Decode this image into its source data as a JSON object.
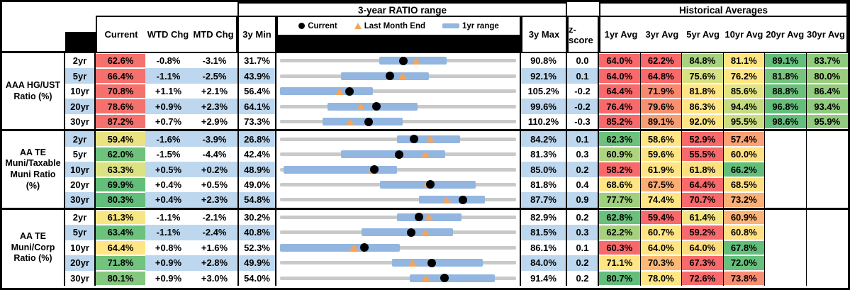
{
  "chart_data": {
    "type": "table",
    "sections": {
      "range_title": "3-year RATIO range",
      "averages_title": "Historical Averages"
    },
    "legend": {
      "current": "Current",
      "last_month": "Last Month End",
      "range_1yr": "1yr range"
    },
    "columns": {
      "current": "Current",
      "wtd": "WTD Chg",
      "mtd": "MTD Chg",
      "min": "3y Min",
      "max": "3y Max",
      "zscore": "z-score",
      "avg_headers": [
        "1yr Avg",
        "3yr Avg",
        "5yr Avg",
        "10yr Avg",
        "20yr Avg",
        "30yr Avg"
      ]
    },
    "colors": {
      "stripe_row": "#BDD7EE",
      "range_bar": "#92B6E0",
      "range_track": "#C9C9C9",
      "current_dot": "#000000",
      "last_month_triangle": "#F4A45C",
      "scale_red": "#F8696B",
      "scale_yellow": "#FFE584",
      "scale_green": "#63BE7B"
    },
    "groups": [
      {
        "label": "AAA HG/UST Ratio (%)",
        "rows": [
          {
            "tenor": "2yr",
            "stripe": false,
            "current": {
              "text": "62.6%",
              "bg": "#F5716D"
            },
            "wtd": "-0.8%",
            "mtd": "-3.1%",
            "min": "31.7%",
            "max": "90.8%",
            "z": "0.0",
            "range_plot": {
              "min": 31.7,
              "max": 90.8,
              "bar_lo": 56.5,
              "bar_hi": 73.5,
              "current": 62.6,
              "last_month": 65.7
            },
            "avgs": [
              {
                "text": "64.0%",
                "bg": "#F8696B"
              },
              {
                "text": "62.2%",
                "bg": "#F8696B"
              },
              {
                "text": "84.8%",
                "bg": "#A8D27F"
              },
              {
                "text": "81.1%",
                "bg": "#FFE584"
              },
              {
                "text": "89.1%",
                "bg": "#63BE7B"
              },
              {
                "text": "83.7%",
                "bg": "#90CB7D"
              }
            ]
          },
          {
            "tenor": "5yr",
            "stripe": true,
            "current": {
              "text": "66.4%",
              "bg": "#F5716D"
            },
            "wtd": "-1.1%",
            "mtd": "-2.5%",
            "min": "43.9%",
            "max": "92.1%",
            "z": "0.1",
            "range_plot": {
              "min": 43.9,
              "max": 92.1,
              "bar_lo": 56.3,
              "bar_hi": 74.3,
              "current": 66.4,
              "last_month": 68.9
            },
            "avgs": [
              {
                "text": "64.0%",
                "bg": "#F8696B"
              },
              {
                "text": "64.8%",
                "bg": "#F8696B"
              },
              {
                "text": "75.6%",
                "bg": "#D7E182"
              },
              {
                "text": "76.2%",
                "bg": "#FFE584"
              },
              {
                "text": "81.8%",
                "bg": "#76C47D"
              },
              {
                "text": "80.0%",
                "bg": "#9ACE7E"
              }
            ]
          },
          {
            "tenor": "10yr",
            "stripe": false,
            "current": {
              "text": "70.8%",
              "bg": "#F5716D"
            },
            "wtd": "+1.1%",
            "mtd": "+2.1%",
            "min": "56.4%",
            "max": "105.2%",
            "z": "-0.2",
            "range_plot": {
              "min": 56.4,
              "max": 105.2,
              "bar_lo": 56.4,
              "bar_hi": 75.6,
              "current": 70.8,
              "last_month": 68.7
            },
            "avgs": [
              {
                "text": "64.4%",
                "bg": "#F8696B"
              },
              {
                "text": "71.9%",
                "bg": "#F9886F"
              },
              {
                "text": "81.8%",
                "bg": "#FFE584"
              },
              {
                "text": "85.6%",
                "bg": "#E5E483"
              },
              {
                "text": "88.8%",
                "bg": "#6BC17C"
              },
              {
                "text": "86.4%",
                "bg": "#94CC7E"
              }
            ]
          },
          {
            "tenor": "20yr",
            "stripe": true,
            "current": {
              "text": "78.6%",
              "bg": "#F5716D"
            },
            "wtd": "+0.9%",
            "mtd": "+2.3%",
            "min": "64.1%",
            "max": "99.6%",
            "z": "-0.2",
            "range_plot": {
              "min": 64.1,
              "max": 99.6,
              "bar_lo": 71.2,
              "bar_hi": 84.8,
              "current": 78.6,
              "last_month": 76.3
            },
            "avgs": [
              {
                "text": "76.4%",
                "bg": "#F8696B"
              },
              {
                "text": "79.6%",
                "bg": "#F9906F"
              },
              {
                "text": "86.3%",
                "bg": "#FFE584"
              },
              {
                "text": "94.4%",
                "bg": "#C4DB80"
              },
              {
                "text": "96.8%",
                "bg": "#63BE7B"
              },
              {
                "text": "93.4%",
                "bg": "#8FCA7D"
              }
            ]
          },
          {
            "tenor": "30yr",
            "stripe": false,
            "current": {
              "text": "87.2%",
              "bg": "#F5716D"
            },
            "wtd": "+0.7%",
            "mtd": "+2.9%",
            "min": "73.3%",
            "max": "110.2%",
            "z": "-0.3",
            "range_plot": {
              "min": 73.3,
              "max": 110.2,
              "bar_lo": 79.9,
              "bar_hi": 92.5,
              "current": 87.2,
              "last_month": 84.3
            },
            "avgs": [
              {
                "text": "85.2%",
                "bg": "#F8696B"
              },
              {
                "text": "89.1%",
                "bg": "#F99D72"
              },
              {
                "text": "92.0%",
                "bg": "#FFE584"
              },
              {
                "text": "95.5%",
                "bg": "#CDDE81"
              },
              {
                "text": "98.6%",
                "bg": "#63BE7B"
              },
              {
                "text": "95.9%",
                "bg": "#92CB7E"
              }
            ]
          }
        ]
      },
      {
        "label": "AA TE Muni/Taxable Muni Ratio (%)",
        "rows": [
          {
            "tenor": "2yr",
            "stripe": true,
            "current": {
              "text": "59.4%",
              "bg": "#EBE381"
            },
            "wtd": "-1.6%",
            "mtd": "-3.9%",
            "min": "26.8%",
            "max": "84.2%",
            "z": "0.1",
            "range_plot": {
              "min": 26.8,
              "max": 84.2,
              "bar_lo": 55.2,
              "bar_hi": 70.6,
              "current": 59.4,
              "last_month": 63.3
            },
            "avgs": [
              {
                "text": "62.3%",
                "bg": "#6CC17C"
              },
              {
                "text": "58.6%",
                "bg": "#FFE584"
              },
              {
                "text": "52.9%",
                "bg": "#F8696B"
              },
              {
                "text": "57.4%",
                "bg": "#FBA173"
              },
              {
                "text": "",
                "bg": ""
              },
              {
                "text": "",
                "bg": ""
              }
            ]
          },
          {
            "tenor": "5yr",
            "stripe": false,
            "current": {
              "text": "62.0%",
              "bg": "#6EC27D"
            },
            "wtd": "-1.5%",
            "mtd": "-4.4%",
            "min": "42.4%",
            "max": "81.3%",
            "z": "0.3",
            "range_plot": {
              "min": 42.4,
              "max": 81.3,
              "bar_lo": 52.4,
              "bar_hi": 69.6,
              "current": 62.0,
              "last_month": 66.4
            },
            "avgs": [
              {
                "text": "60.9%",
                "bg": "#AFD47F"
              },
              {
                "text": "59.6%",
                "bg": "#FFE584"
              },
              {
                "text": "55.5%",
                "bg": "#F8696B"
              },
              {
                "text": "60.0%",
                "bg": "#FFE083"
              },
              {
                "text": "",
                "bg": ""
              },
              {
                "text": "",
                "bg": ""
              }
            ]
          },
          {
            "tenor": "10yr",
            "stripe": true,
            "current": {
              "text": "63.3%",
              "bg": "#DCE282"
            },
            "wtd": "+0.5%",
            "mtd": "+0.2%",
            "min": "48.9%",
            "max": "85.0%",
            "z": "0.2",
            "range_plot": {
              "min": 48.9,
              "max": 85.0,
              "bar_lo": 49.4,
              "bar_hi": 66.8,
              "current": 63.3,
              "last_month": 63.1
            },
            "avgs": [
              {
                "text": "58.2%",
                "bg": "#F8696B"
              },
              {
                "text": "61.9%",
                "bg": "#FFE584"
              },
              {
                "text": "61.8%",
                "bg": "#FCE07F"
              },
              {
                "text": "66.2%",
                "bg": "#63BE7B"
              },
              {
                "text": "",
                "bg": ""
              },
              {
                "text": "",
                "bg": ""
              }
            ]
          },
          {
            "tenor": "20yr",
            "stripe": false,
            "current": {
              "text": "69.9%",
              "bg": "#63BE7B"
            },
            "wtd": "+0.4%",
            "mtd": "+0.5%",
            "min": "49.0%",
            "max": "81.8%",
            "z": "0.4",
            "range_plot": {
              "min": 49.0,
              "max": 81.8,
              "bar_lo": 62.9,
              "bar_hi": 76.2,
              "current": 69.9,
              "last_month": 69.4
            },
            "avgs": [
              {
                "text": "68.6%",
                "bg": "#FFE584"
              },
              {
                "text": "67.5%",
                "bg": "#FBAD75"
              },
              {
                "text": "64.4%",
                "bg": "#F8696B"
              },
              {
                "text": "68.5%",
                "bg": "#FFDE82"
              },
              {
                "text": "",
                "bg": ""
              },
              {
                "text": "",
                "bg": ""
              }
            ]
          },
          {
            "tenor": "30yr",
            "stripe": true,
            "current": {
              "text": "80.3%",
              "bg": "#63BE7B"
            },
            "wtd": "+0.4%",
            "mtd": "+2.3%",
            "min": "54.8%",
            "max": "87.7%",
            "z": "0.9",
            "range_plot": {
              "min": 54.8,
              "max": 87.7,
              "bar_lo": 74.2,
              "bar_hi": 83.4,
              "current": 80.3,
              "last_month": 78.0
            },
            "avgs": [
              {
                "text": "77.7%",
                "bg": "#9ED07E"
              },
              {
                "text": "74.4%",
                "bg": "#FFE584"
              },
              {
                "text": "70.7%",
                "bg": "#F8696B"
              },
              {
                "text": "73.2%",
                "bg": "#FBB076"
              },
              {
                "text": "",
                "bg": ""
              },
              {
                "text": "",
                "bg": ""
              }
            ]
          }
        ]
      },
      {
        "label": "AA TE Muni/Corp Ratio (%)",
        "rows": [
          {
            "tenor": "2yr",
            "stripe": false,
            "current": {
              "text": "61.3%",
              "bg": "#F7E782"
            },
            "wtd": "-1.1%",
            "mtd": "-2.1%",
            "min": "30.2%",
            "max": "82.9%",
            "z": "0.2",
            "range_plot": {
              "min": 30.2,
              "max": 82.9,
              "bar_lo": 56.3,
              "bar_hi": 70.7,
              "current": 61.3,
              "last_month": 63.4
            },
            "avgs": [
              {
                "text": "62.8%",
                "bg": "#6AC07C"
              },
              {
                "text": "59.4%",
                "bg": "#F8696B"
              },
              {
                "text": "61.4%",
                "bg": "#F3E581"
              },
              {
                "text": "60.9%",
                "bg": "#FBB377"
              },
              {
                "text": "",
                "bg": ""
              },
              {
                "text": "",
                "bg": ""
              }
            ]
          },
          {
            "tenor": "5yr",
            "stripe": true,
            "current": {
              "text": "63.4%",
              "bg": "#6CC17C"
            },
            "wtd": "-1.1%",
            "mtd": "-2.4%",
            "min": "40.8%",
            "max": "81.5%",
            "z": "0.3",
            "range_plot": {
              "min": 40.8,
              "max": 81.5,
              "bar_lo": 54.8,
              "bar_hi": 70.6,
              "current": 63.4,
              "last_month": 65.8
            },
            "avgs": [
              {
                "text": "62.2%",
                "bg": "#A5D17F"
              },
              {
                "text": "60.7%",
                "bg": "#FFE584"
              },
              {
                "text": "59.2%",
                "bg": "#F8696B"
              },
              {
                "text": "60.8%",
                "bg": "#FFE083"
              },
              {
                "text": "",
                "bg": ""
              },
              {
                "text": "",
                "bg": ""
              }
            ]
          },
          {
            "tenor": "10yr",
            "stripe": false,
            "current": {
              "text": "64.4%",
              "bg": "#FFE584"
            },
            "wtd": "+0.8%",
            "mtd": "+1.6%",
            "min": "52.3%",
            "max": "86.1%",
            "z": "0.1",
            "range_plot": {
              "min": 52.3,
              "max": 86.1,
              "bar_lo": 52.3,
              "bar_hi": 69.5,
              "current": 64.4,
              "last_month": 62.8
            },
            "avgs": [
              {
                "text": "60.3%",
                "bg": "#F8696B"
              },
              {
                "text": "64.0%",
                "bg": "#FFE584"
              },
              {
                "text": "64.0%",
                "bg": "#FDDA7E"
              },
              {
                "text": "67.8%",
                "bg": "#63BE7B"
              },
              {
                "text": "",
                "bg": ""
              },
              {
                "text": "",
                "bg": ""
              }
            ]
          },
          {
            "tenor": "20yr",
            "stripe": true,
            "current": {
              "text": "71.8%",
              "bg": "#72C37D"
            },
            "wtd": "+0.9%",
            "mtd": "+2.8%",
            "min": "49.9%",
            "max": "84.0%",
            "z": "0.2",
            "range_plot": {
              "min": 49.9,
              "max": 84.0,
              "bar_lo": 66.1,
              "bar_hi": 79.2,
              "current": 71.8,
              "last_month": 69.0
            },
            "avgs": [
              {
                "text": "71.1%",
                "bg": "#FFE584"
              },
              {
                "text": "70.3%",
                "bg": "#FBB978"
              },
              {
                "text": "67.3%",
                "bg": "#F8696B"
              },
              {
                "text": "72.0%",
                "bg": "#67C07C"
              },
              {
                "text": "",
                "bg": ""
              },
              {
                "text": "",
                "bg": ""
              }
            ]
          },
          {
            "tenor": "30yr",
            "stripe": false,
            "current": {
              "text": "80.1%",
              "bg": "#84C77E"
            },
            "wtd": "+0.9%",
            "mtd": "+3.0%",
            "min": "54.0%",
            "max": "91.4%",
            "z": "0.2",
            "range_plot": {
              "min": 54.0,
              "max": 91.4,
              "bar_lo": 74.6,
              "bar_hi": 88.0,
              "current": 80.1,
              "last_month": 77.1
            },
            "avgs": [
              {
                "text": "80.7%",
                "bg": "#63BE7B"
              },
              {
                "text": "78.0%",
                "bg": "#FFE584"
              },
              {
                "text": "72.6%",
                "bg": "#F8696B"
              },
              {
                "text": "73.8%",
                "bg": "#F98D72"
              },
              {
                "text": "",
                "bg": ""
              },
              {
                "text": "",
                "bg": ""
              }
            ]
          }
        ]
      }
    ]
  }
}
